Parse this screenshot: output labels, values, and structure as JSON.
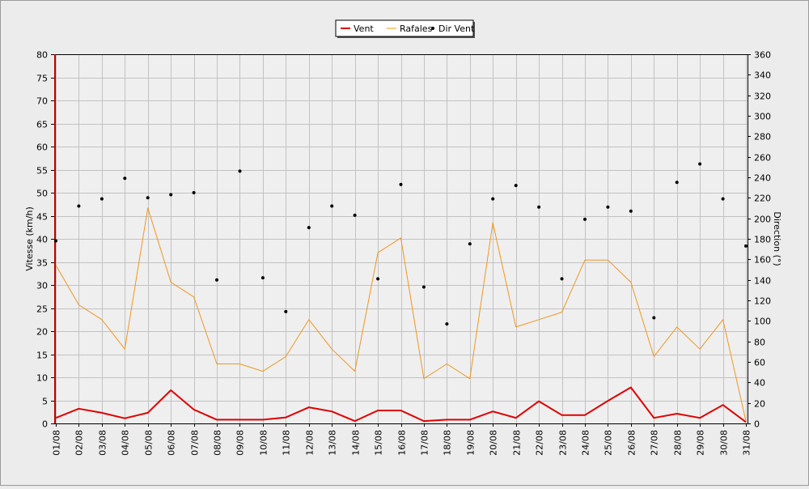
{
  "chart_data": {
    "type": "line",
    "title": "",
    "xlabel": "",
    "ylabel": "Vitesse (km/h)",
    "y2label": "Direction (°)",
    "ylim": [
      0,
      80
    ],
    "y2lim": [
      0,
      360
    ],
    "yticks": [
      0,
      5,
      10,
      15,
      20,
      25,
      30,
      35,
      40,
      45,
      50,
      55,
      60,
      65,
      70,
      75,
      80
    ],
    "y2ticks": [
      0,
      20,
      40,
      60,
      80,
      100,
      120,
      140,
      160,
      180,
      200,
      220,
      240,
      260,
      280,
      300,
      320,
      340,
      360
    ],
    "grid": true,
    "legend_position": "top-center",
    "categories": [
      "01/08",
      "02/08",
      "03/08",
      "04/08",
      "05/08",
      "06/08",
      "07/08",
      "08/08",
      "09/08",
      "10/08",
      "11/08",
      "12/08",
      "13/08",
      "14/08",
      "15/08",
      "16/08",
      "17/08",
      "18/08",
      "19/08",
      "20/08",
      "21/08",
      "22/08",
      "23/08",
      "24/08",
      "25/08",
      "26/08",
      "27/08",
      "28/08",
      "29/08",
      "30/08",
      "31/08"
    ],
    "series": [
      {
        "name": "Vent",
        "type": "line",
        "axis": "left",
        "color": "#e00000",
        "values": [
          1.2,
          3.2,
          2.3,
          1.1,
          2.3,
          7.2,
          3.0,
          0.8,
          0.8,
          0.8,
          1.3,
          3.5,
          2.6,
          0.5,
          2.8,
          2.8,
          0.5,
          0.8,
          0.8,
          2.6,
          1.2,
          4.8,
          1.8,
          1.8,
          4.9,
          7.8,
          1.2,
          2.1,
          1.2,
          4.0,
          0.3
        ]
      },
      {
        "name": "Rafales",
        "type": "line",
        "axis": "left",
        "color": "#f0961e",
        "values": [
          34.3,
          25.7,
          22.5,
          16.1,
          46.7,
          30.6,
          27.4,
          12.9,
          12.9,
          11.3,
          14.5,
          22.5,
          16.1,
          11.3,
          37.0,
          40.2,
          9.7,
          12.9,
          9.7,
          43.5,
          20.9,
          22.5,
          24.1,
          35.4,
          35.4,
          30.6,
          14.5,
          20.9,
          16.1,
          22.5,
          0.5
        ]
      },
      {
        "name": "Dir Vent",
        "type": "scatter",
        "axis": "right",
        "color": "#000000",
        "values": [
          178,
          212,
          219,
          239,
          220,
          223,
          225,
          140,
          246,
          142,
          109,
          191,
          212,
          203,
          141,
          233,
          133,
          97,
          175,
          219,
          232,
          211,
          141,
          199,
          211,
          207,
          103,
          235,
          253,
          219,
          173
        ]
      }
    ]
  }
}
